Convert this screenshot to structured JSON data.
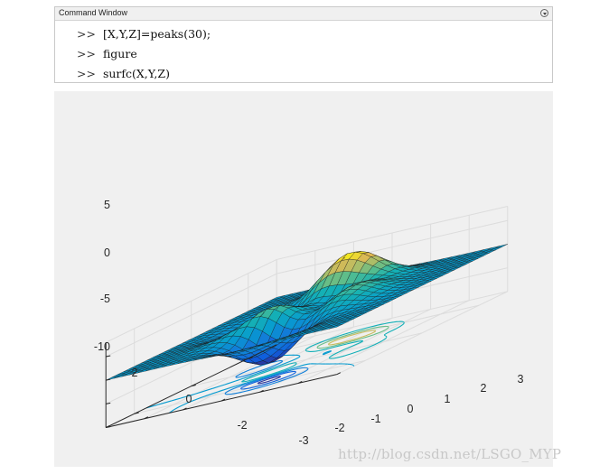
{
  "command_window": {
    "title": "Command Window",
    "prompt": ">>",
    "lines": [
      "[X,Y,Z]=peaks(30);",
      "figure",
      "surfc(X,Y,Z)"
    ]
  },
  "figure": {
    "z_ticks": [
      "5",
      "0",
      "-5",
      "-10"
    ],
    "y_ticks": [
      "2",
      "0",
      "-2"
    ],
    "x_ticks": [
      "-3",
      "-2",
      "-1",
      "0",
      "1",
      "2",
      "3"
    ]
  },
  "watermark": "http://blog.csdn.net/LSGO_MYP",
  "chart_data": {
    "type": "surface",
    "function": "peaks",
    "grid_size": 30,
    "x_range": [
      -3,
      3
    ],
    "y_range": [
      -3,
      3
    ],
    "z_range": [
      -10,
      8
    ],
    "z_ticks": [
      5,
      0,
      -5,
      -10
    ],
    "y_ticks": [
      2,
      0,
      -2
    ],
    "x_ticks": [
      -3,
      -2,
      -1,
      0,
      1,
      2,
      3
    ],
    "grid": true,
    "colormap": "parula",
    "contour_below": true
  }
}
